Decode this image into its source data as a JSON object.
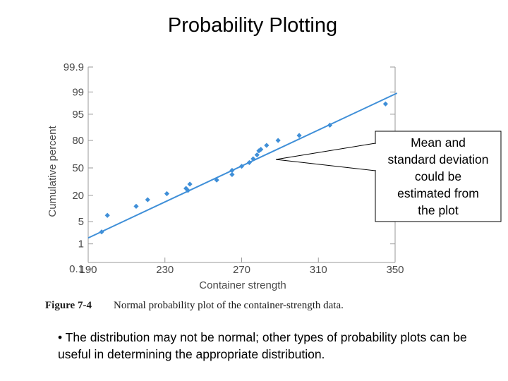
{
  "slide": {
    "title": "Probability Plotting",
    "bullet": "•  The distribution may not be normal; other types of probability plots can be useful in determining the appropriate distribution."
  },
  "figure": {
    "caption_label": "Figure 7-4",
    "caption_text": "Normal probability plot of the container-strength data.",
    "callout_lines": [
      "Mean and",
      "standard deviation",
      "could be",
      "estimated from",
      "the plot"
    ]
  },
  "chart_data": {
    "type": "scatter",
    "xlabel": "Container strength",
    "ylabel": "Cumulative percent",
    "x_ticks": [
      190,
      230,
      270,
      310,
      350
    ],
    "y_ticks": [
      "0.1",
      "1",
      "5",
      "20",
      "50",
      "80",
      "95",
      "99",
      "99.9"
    ],
    "xlim": [
      190,
      350
    ],
    "y_scale": "normal probability",
    "fit_line": {
      "x": [
        190,
        351
      ],
      "y": [
        1.6,
        98.9
      ]
    },
    "points": [
      {
        "x": 197,
        "y": 2.5
      },
      {
        "x": 200,
        "y": 7.3
      },
      {
        "x": 215,
        "y": 12
      },
      {
        "x": 221,
        "y": 16.5
      },
      {
        "x": 231,
        "y": 21.5
      },
      {
        "x": 241,
        "y": 26.5
      },
      {
        "x": 242,
        "y": 24.5
      },
      {
        "x": 243,
        "y": 31
      },
      {
        "x": 257,
        "y": 35.5
      },
      {
        "x": 265,
        "y": 42
      },
      {
        "x": 265,
        "y": 47
      },
      {
        "x": 270,
        "y": 52
      },
      {
        "x": 274,
        "y": 56.5
      },
      {
        "x": 276,
        "y": 61
      },
      {
        "x": 278,
        "y": 65.5
      },
      {
        "x": 279,
        "y": 70
      },
      {
        "x": 280,
        "y": 71.5
      },
      {
        "x": 283,
        "y": 75.5
      },
      {
        "x": 289,
        "y": 80
      },
      {
        "x": 300,
        "y": 84
      },
      {
        "x": 316,
        "y": 90.5
      },
      {
        "x": 345,
        "y": 97.5
      }
    ],
    "colors": {
      "points": "#3f8fd8",
      "fit_line": "#3f8fd8"
    }
  }
}
